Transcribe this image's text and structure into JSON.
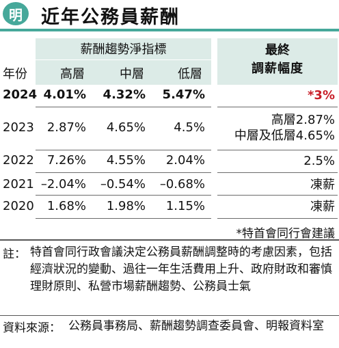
{
  "header": {
    "logo_text": "明",
    "title": "近年公務員薪酬"
  },
  "table": {
    "group_header": "薪酬趨勢淨指標",
    "year_header": "年份",
    "col_high": "高層",
    "col_mid": "中層",
    "col_low": "低層",
    "side_header_line1": "最終",
    "side_header_line2": "調薪幅度",
    "rows": [
      {
        "year": "2024",
        "high": "4.01%",
        "mid": "4.32%",
        "low": "5.47%",
        "final": [
          "*3%"
        ]
      },
      {
        "year": "2023",
        "high": "2.87%",
        "mid": "4.65%",
        "low": "4.5%",
        "final": [
          "高層2.87%",
          "中層及低層4.65%"
        ]
      },
      {
        "year": "2022",
        "high": "7.26%",
        "mid": "4.55%",
        "low": "2.04%",
        "final": [
          "2.5%"
        ]
      },
      {
        "year": "2021",
        "high": "–2.04%",
        "mid": "–0.54%",
        "low": "–0.68%",
        "final": [
          "凍薪"
        ]
      },
      {
        "year": "2020",
        "high": "1.68%",
        "mid": "1.98%",
        "low": "1.15%",
        "final": [
          "凍薪"
        ]
      }
    ],
    "footnote": "*特首會同行會建議"
  },
  "notes": {
    "label": "註：",
    "text": "特首會同行政會議決定公務員薪酬調整時的考慮因素，包括經濟狀況的變動、過往一年生活費用上升、政府財政和審慎理財原則、私營市場薪酬趨勢、公務員士氣",
    "source_label": "資料來源：",
    "source_text": "公務員事務局、薪酬趨勢調查委員會、明報資料室"
  },
  "colors": {
    "accent": "#46a89a",
    "header_band": "#dcebe7",
    "highlight_red": "#c81e28"
  }
}
